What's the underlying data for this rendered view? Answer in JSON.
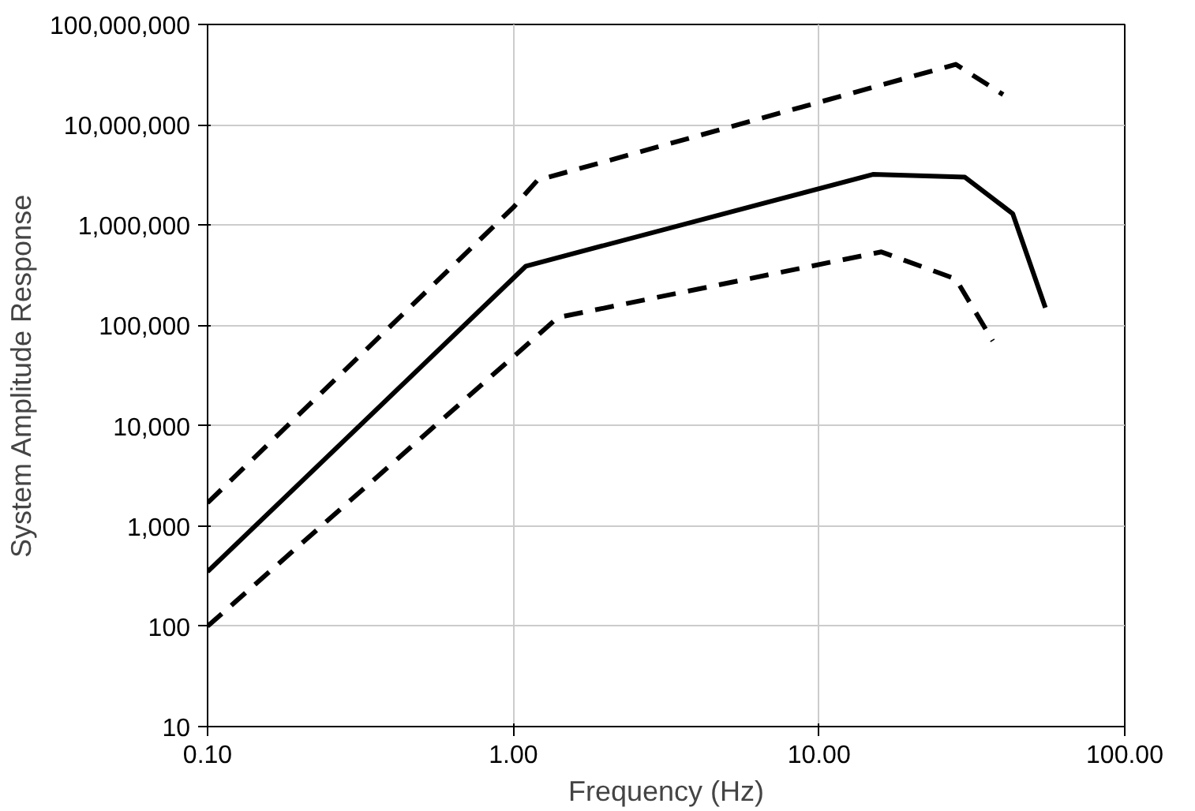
{
  "chart_data": {
    "type": "line",
    "xlabel": "Frequency (Hz)",
    "ylabel": "System Amplitude Response",
    "log": "xy",
    "grid": true,
    "xlim": [
      0.1,
      100
    ],
    "xticks": [
      {
        "value": 0.1,
        "label": "0.10"
      },
      {
        "value": 1,
        "label": "1.00"
      },
      {
        "value": 10,
        "label": "10.00"
      },
      {
        "value": 100,
        "label": "100.00"
      }
    ],
    "ylim": [
      10,
      100000000
    ],
    "yticks": [
      10,
      100,
      {
        "value": 1000,
        "label": "1,000"
      },
      {
        "value": 10000,
        "label": "10,000"
      },
      {
        "value": 100000,
        "label": "100,000"
      },
      {
        "value": 1000000,
        "label": "1,000,000"
      },
      {
        "value": 10000000,
        "label": "10,000,000"
      },
      {
        "value": 100000000,
        "label": "100,000,000"
      }
    ],
    "series": [
      {
        "color": "#000000",
        "line_style": "dashed",
        "x": [
          0.1,
          1.0,
          1.2,
          28,
          40
        ],
        "values": [
          1700,
          1500000,
          2800000,
          40000000,
          20000000
        ]
      },
      {
        "color": "#000000",
        "line_style": "solid",
        "x": [
          0.1,
          1.1,
          15,
          30,
          43,
          55
        ],
        "values": [
          350,
          390000,
          3200000,
          3000000,
          1300000,
          150000
        ]
      },
      {
        "color": "#000000",
        "line_style": "dashed",
        "x": [
          0.1,
          1.4,
          16,
          28,
          37
        ],
        "values": [
          100,
          120000,
          540000,
          290000,
          70000
        ]
      }
    ]
  }
}
